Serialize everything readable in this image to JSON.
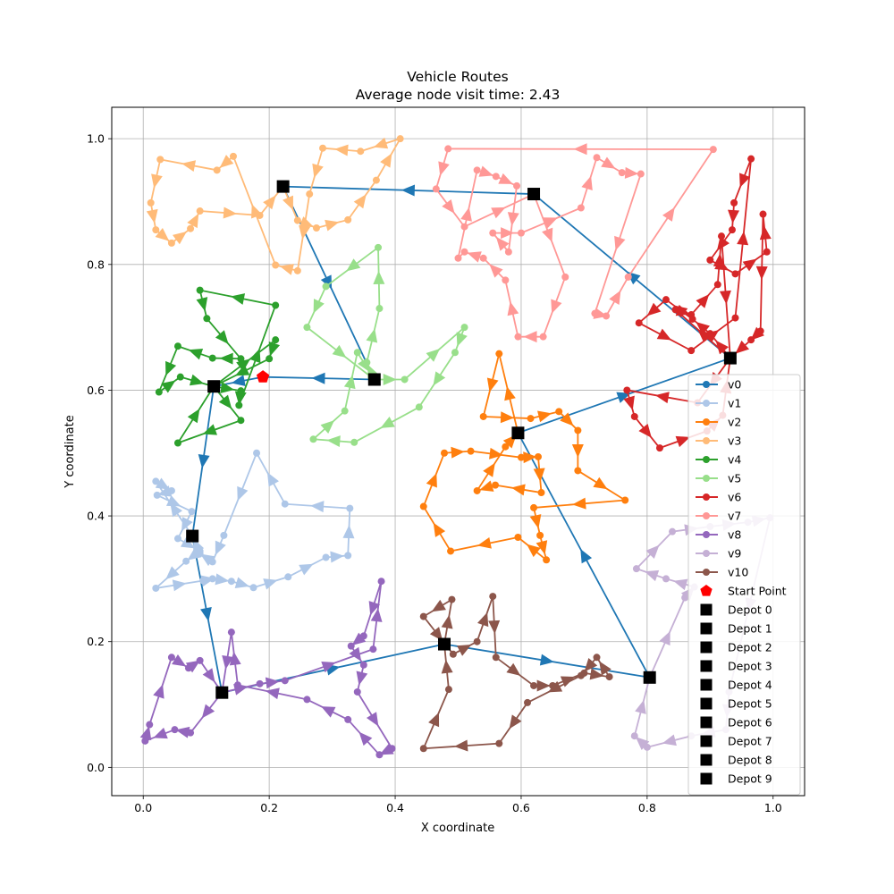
{
  "chart_data": {
    "type": "line",
    "title": "Vehicle Routes",
    "subtitle": "Average node visit time: 2.43",
    "xlabel": "X coordinate",
    "ylabel": "Y coordinate",
    "xlim": [
      -0.05,
      1.05
    ],
    "ylim": [
      -0.045,
      1.05
    ],
    "x_ticks": [
      "0.0",
      "0.2",
      "0.4",
      "0.6",
      "0.8",
      "1.0"
    ],
    "y_ticks": [
      "0.0",
      "0.2",
      "0.4",
      "0.6",
      "0.8",
      "1.0"
    ],
    "grid": true,
    "legend_position": "lower-right",
    "series": [
      {
        "name": "v0",
        "color": "#1f77b4",
        "points": [
          [
            0.595,
            0.532
          ],
          [
            0.932,
            0.651
          ],
          [
            0.62,
            0.912
          ],
          [
            0.222,
            0.924
          ],
          [
            0.367,
            0.617
          ],
          [
            0.19,
            0.621
          ],
          [
            0.112,
            0.606
          ],
          [
            0.078,
            0.368
          ],
          [
            0.125,
            0.119
          ],
          [
            0.478,
            0.196
          ],
          [
            0.804,
            0.143
          ],
          [
            0.595,
            0.532
          ]
        ]
      },
      {
        "name": "v1",
        "color": "#aec7e8",
        "points": [
          [
            0.078,
            0.368
          ],
          [
            0.02,
            0.455
          ],
          [
            0.045,
            0.44
          ],
          [
            0.022,
            0.433
          ],
          [
            0.077,
            0.407
          ],
          [
            0.055,
            0.364
          ],
          [
            0.09,
            0.344
          ],
          [
            0.068,
            0.328
          ],
          [
            0.02,
            0.285
          ],
          [
            0.095,
            0.297
          ],
          [
            0.11,
            0.3
          ],
          [
            0.14,
            0.296
          ],
          [
            0.175,
            0.286
          ],
          [
            0.23,
            0.303
          ],
          [
            0.29,
            0.334
          ],
          [
            0.325,
            0.337
          ],
          [
            0.328,
            0.412
          ],
          [
            0.225,
            0.419
          ],
          [
            0.18,
            0.5
          ],
          [
            0.128,
            0.369
          ],
          [
            0.11,
            0.327
          ],
          [
            0.09,
            0.34
          ],
          [
            0.078,
            0.368
          ]
        ]
      },
      {
        "name": "v2",
        "color": "#ff7f0e",
        "points": [
          [
            0.595,
            0.532
          ],
          [
            0.565,
            0.658
          ],
          [
            0.54,
            0.558
          ],
          [
            0.615,
            0.555
          ],
          [
            0.66,
            0.566
          ],
          [
            0.69,
            0.536
          ],
          [
            0.69,
            0.472
          ],
          [
            0.765,
            0.425
          ],
          [
            0.62,
            0.413
          ],
          [
            0.63,
            0.369
          ],
          [
            0.64,
            0.33
          ],
          [
            0.595,
            0.366
          ],
          [
            0.488,
            0.344
          ],
          [
            0.445,
            0.415
          ],
          [
            0.478,
            0.5
          ],
          [
            0.52,
            0.503
          ],
          [
            0.6,
            0.493
          ],
          [
            0.627,
            0.494
          ],
          [
            0.632,
            0.437
          ],
          [
            0.559,
            0.449
          ],
          [
            0.53,
            0.44
          ],
          [
            0.575,
            0.51
          ],
          [
            0.595,
            0.532
          ]
        ]
      },
      {
        "name": "v3",
        "color": "#ffbb78",
        "points": [
          [
            0.222,
            0.924
          ],
          [
            0.245,
            0.87
          ],
          [
            0.275,
            0.858
          ],
          [
            0.325,
            0.871
          ],
          [
            0.37,
            0.934
          ],
          [
            0.408,
            1.0
          ],
          [
            0.345,
            0.98
          ],
          [
            0.285,
            0.985
          ],
          [
            0.264,
            0.912
          ],
          [
            0.245,
            0.79
          ],
          [
            0.21,
            0.799
          ],
          [
            0.143,
            0.972
          ],
          [
            0.117,
            0.95
          ],
          [
            0.027,
            0.967
          ],
          [
            0.012,
            0.898
          ],
          [
            0.02,
            0.855
          ],
          [
            0.045,
            0.834
          ],
          [
            0.075,
            0.857
          ],
          [
            0.09,
            0.885
          ],
          [
            0.185,
            0.878
          ],
          [
            0.222,
            0.924
          ]
        ]
      },
      {
        "name": "v4",
        "color": "#2ca02c",
        "points": [
          [
            0.112,
            0.606
          ],
          [
            0.155,
            0.599
          ],
          [
            0.152,
            0.576
          ],
          [
            0.21,
            0.735
          ],
          [
            0.09,
            0.759
          ],
          [
            0.101,
            0.714
          ],
          [
            0.155,
            0.65
          ],
          [
            0.11,
            0.651
          ],
          [
            0.055,
            0.67
          ],
          [
            0.025,
            0.597
          ],
          [
            0.059,
            0.621
          ],
          [
            0.112,
            0.606
          ],
          [
            0.155,
            0.552
          ],
          [
            0.055,
            0.516
          ],
          [
            0.112,
            0.606
          ],
          [
            0.21,
            0.68
          ],
          [
            0.2,
            0.65
          ],
          [
            0.112,
            0.606
          ]
        ]
      },
      {
        "name": "v5",
        "color": "#98df8a",
        "points": [
          [
            0.367,
            0.617
          ],
          [
            0.355,
            0.644
          ],
          [
            0.375,
            0.73
          ],
          [
            0.373,
            0.827
          ],
          [
            0.29,
            0.765
          ],
          [
            0.26,
            0.7
          ],
          [
            0.367,
            0.617
          ],
          [
            0.415,
            0.617
          ],
          [
            0.51,
            0.7
          ],
          [
            0.495,
            0.66
          ],
          [
            0.438,
            0.573
          ],
          [
            0.335,
            0.517
          ],
          [
            0.27,
            0.522
          ],
          [
            0.32,
            0.567
          ],
          [
            0.34,
            0.66
          ],
          [
            0.367,
            0.617
          ]
        ]
      },
      {
        "name": "v6",
        "color": "#d62728",
        "points": [
          [
            0.932,
            0.651
          ],
          [
            0.9,
            0.69
          ],
          [
            0.872,
            0.713
          ],
          [
            0.83,
            0.744
          ],
          [
            0.787,
            0.707
          ],
          [
            0.87,
            0.663
          ],
          [
            0.94,
            0.715
          ],
          [
            0.965,
            0.968
          ],
          [
            0.938,
            0.898
          ],
          [
            0.935,
            0.855
          ],
          [
            0.9,
            0.807
          ],
          [
            0.94,
            0.785
          ],
          [
            0.99,
            0.82
          ],
          [
            0.984,
            0.88
          ],
          [
            0.98,
            0.694
          ],
          [
            0.965,
            0.68
          ],
          [
            0.932,
            0.651
          ],
          [
            0.88,
            0.58
          ],
          [
            0.768,
            0.6
          ],
          [
            0.78,
            0.558
          ],
          [
            0.82,
            0.508
          ],
          [
            0.895,
            0.535
          ],
          [
            0.92,
            0.56
          ],
          [
            0.932,
            0.651
          ],
          [
            0.845,
            0.728
          ],
          [
            0.87,
            0.72
          ],
          [
            0.912,
            0.768
          ],
          [
            0.918,
            0.845
          ],
          [
            0.932,
            0.651
          ]
        ]
      },
      {
        "name": "v7",
        "color": "#ff9896",
        "points": [
          [
            0.62,
            0.912
          ],
          [
            0.67,
            0.78
          ],
          [
            0.635,
            0.685
          ],
          [
            0.595,
            0.685
          ],
          [
            0.575,
            0.775
          ],
          [
            0.54,
            0.81
          ],
          [
            0.51,
            0.82
          ],
          [
            0.5,
            0.81
          ],
          [
            0.53,
            0.95
          ],
          [
            0.56,
            0.94
          ],
          [
            0.593,
            0.925
          ],
          [
            0.58,
            0.82
          ],
          [
            0.555,
            0.85
          ],
          [
            0.6,
            0.85
          ],
          [
            0.695,
            0.89
          ],
          [
            0.72,
            0.97
          ],
          [
            0.76,
            0.946
          ],
          [
            0.79,
            0.944
          ],
          [
            0.717,
            0.722
          ],
          [
            0.735,
            0.718
          ],
          [
            0.77,
            0.78
          ],
          [
            0.905,
            0.983
          ],
          [
            0.484,
            0.984
          ],
          [
            0.465,
            0.92
          ],
          [
            0.51,
            0.86
          ],
          [
            0.62,
            0.912
          ]
        ]
      },
      {
        "name": "v8",
        "color": "#9467bd",
        "points": [
          [
            0.125,
            0.119
          ],
          [
            0.185,
            0.133
          ],
          [
            0.225,
            0.138
          ],
          [
            0.365,
            0.188
          ],
          [
            0.378,
            0.296
          ],
          [
            0.35,
            0.209
          ],
          [
            0.33,
            0.193
          ],
          [
            0.35,
            0.163
          ],
          [
            0.34,
            0.12
          ],
          [
            0.395,
            0.03
          ],
          [
            0.375,
            0.02
          ],
          [
            0.325,
            0.076
          ],
          [
            0.26,
            0.108
          ],
          [
            0.15,
            0.131
          ],
          [
            0.14,
            0.215
          ],
          [
            0.125,
            0.119
          ],
          [
            0.075,
            0.055
          ],
          [
            0.05,
            0.06
          ],
          [
            0.003,
            0.042
          ],
          [
            0.01,
            0.068
          ],
          [
            0.045,
            0.175
          ],
          [
            0.072,
            0.158
          ],
          [
            0.09,
            0.17
          ],
          [
            0.125,
            0.119
          ]
        ]
      },
      {
        "name": "v9",
        "color": "#c5b0d5",
        "points": [
          [
            0.804,
            0.143
          ],
          [
            0.86,
            0.27
          ],
          [
            0.875,
            0.287
          ],
          [
            0.83,
            0.3
          ],
          [
            0.783,
            0.316
          ],
          [
            0.84,
            0.375
          ],
          [
            0.9,
            0.383
          ],
          [
            0.96,
            0.39
          ],
          [
            0.995,
            0.397
          ],
          [
            0.93,
            0.12
          ],
          [
            0.925,
            0.06
          ],
          [
            0.87,
            0.05
          ],
          [
            0.8,
            0.032
          ],
          [
            0.78,
            0.05
          ],
          [
            0.804,
            0.143
          ]
        ]
      },
      {
        "name": "v10",
        "color": "#8c564b",
        "points": [
          [
            0.478,
            0.196
          ],
          [
            0.49,
            0.267
          ],
          [
            0.445,
            0.24
          ],
          [
            0.492,
            0.18
          ],
          [
            0.53,
            0.2
          ],
          [
            0.555,
            0.272
          ],
          [
            0.56,
            0.175
          ],
          [
            0.62,
            0.13
          ],
          [
            0.65,
            0.13
          ],
          [
            0.7,
            0.15
          ],
          [
            0.74,
            0.144
          ],
          [
            0.72,
            0.175
          ],
          [
            0.695,
            0.146
          ],
          [
            0.61,
            0.103
          ],
          [
            0.565,
            0.038
          ],
          [
            0.445,
            0.03
          ],
          [
            0.485,
            0.124
          ],
          [
            0.478,
            0.196
          ]
        ]
      }
    ],
    "start_point": {
      "name": "Start Point",
      "x": 0.19,
      "y": 0.621,
      "color": "#ff0000"
    },
    "depots": [
      {
        "name": "Depot 0",
        "x": 0.932,
        "y": 0.651
      },
      {
        "name": "Depot 1",
        "x": 0.62,
        "y": 0.912
      },
      {
        "name": "Depot 2",
        "x": 0.222,
        "y": 0.924
      },
      {
        "name": "Depot 3",
        "x": 0.367,
        "y": 0.617
      },
      {
        "name": "Depot 4",
        "x": 0.112,
        "y": 0.606
      },
      {
        "name": "Depot 5",
        "x": 0.078,
        "y": 0.368
      },
      {
        "name": "Depot 6",
        "x": 0.125,
        "y": 0.119
      },
      {
        "name": "Depot 7",
        "x": 0.478,
        "y": 0.196
      },
      {
        "name": "Depot 8",
        "x": 0.804,
        "y": 0.143
      },
      {
        "name": "Depot 9",
        "x": 0.595,
        "y": 0.532
      }
    ]
  }
}
